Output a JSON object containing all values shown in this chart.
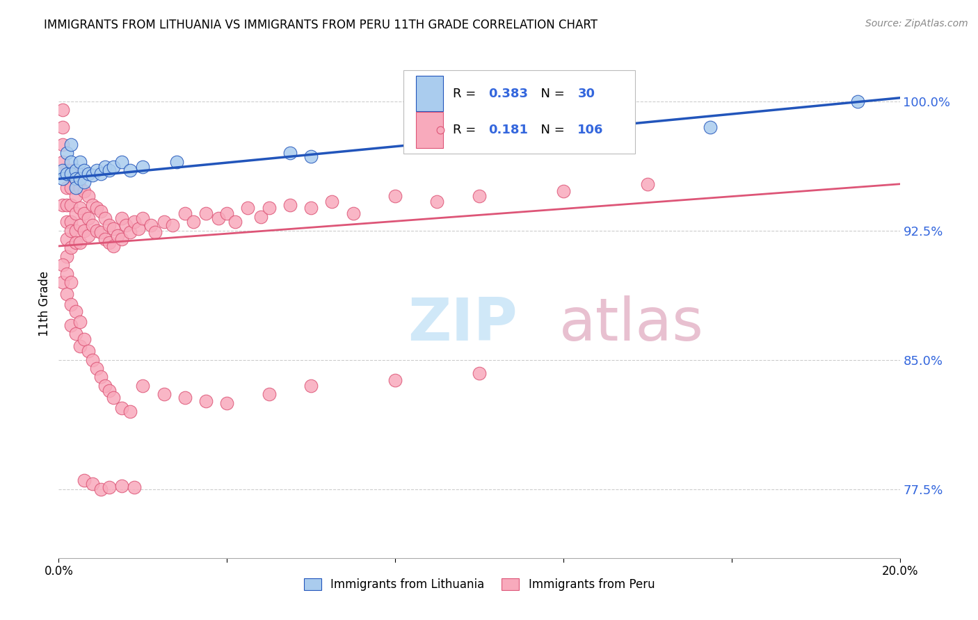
{
  "title": "IMMIGRANTS FROM LITHUANIA VS IMMIGRANTS FROM PERU 11TH GRADE CORRELATION CHART",
  "source": "Source: ZipAtlas.com",
  "ylabel": "11th Grade",
  "xlim": [
    0.0,
    0.2
  ],
  "ylim": [
    0.735,
    1.03
  ],
  "yticks": [
    0.775,
    0.85,
    0.925,
    1.0
  ],
  "ytick_labels": [
    "77.5%",
    "85.0%",
    "92.5%",
    "100.0%"
  ],
  "ytick_color": "#3366dd",
  "legend_R_lith": "0.383",
  "legend_N_lith": "30",
  "legend_R_peru": "0.181",
  "legend_N_peru": "106",
  "color_lith": "#aaccee",
  "color_peru": "#f8aabc",
  "color_line_lith": "#2255bb",
  "color_line_peru": "#dd5577",
  "watermark_zip": "ZIP",
  "watermark_atlas": "atlas",
  "watermark_color_zip": "#d0e8f8",
  "watermark_color_atlas": "#e8c0d0",
  "background_color": "#ffffff",
  "lith_line_x0": 0.0,
  "lith_line_y0": 0.955,
  "lith_line_x1": 0.2,
  "lith_line_y1": 1.002,
  "peru_line_x0": 0.0,
  "peru_line_y0": 0.916,
  "peru_line_x1": 0.2,
  "peru_line_y1": 0.952,
  "lith_x": [
    0.001,
    0.001,
    0.002,
    0.002,
    0.003,
    0.003,
    0.003,
    0.004,
    0.004,
    0.004,
    0.005,
    0.005,
    0.006,
    0.006,
    0.007,
    0.008,
    0.009,
    0.01,
    0.011,
    0.012,
    0.013,
    0.015,
    0.017,
    0.02,
    0.028,
    0.055,
    0.06,
    0.12,
    0.155,
    0.19
  ],
  "lith_y": [
    0.96,
    0.955,
    0.97,
    0.958,
    0.975,
    0.965,
    0.958,
    0.96,
    0.955,
    0.95,
    0.965,
    0.955,
    0.96,
    0.953,
    0.958,
    0.957,
    0.96,
    0.958,
    0.962,
    0.96,
    0.962,
    0.965,
    0.96,
    0.962,
    0.965,
    0.97,
    0.968,
    0.978,
    0.985,
    1.0
  ],
  "peru_x": [
    0.001,
    0.001,
    0.001,
    0.001,
    0.001,
    0.002,
    0.002,
    0.002,
    0.002,
    0.002,
    0.002,
    0.003,
    0.003,
    0.003,
    0.003,
    0.003,
    0.003,
    0.004,
    0.004,
    0.004,
    0.004,
    0.004,
    0.005,
    0.005,
    0.005,
    0.005,
    0.006,
    0.006,
    0.006,
    0.007,
    0.007,
    0.007,
    0.008,
    0.008,
    0.009,
    0.009,
    0.01,
    0.01,
    0.011,
    0.011,
    0.012,
    0.012,
    0.013,
    0.013,
    0.014,
    0.015,
    0.015,
    0.016,
    0.017,
    0.018,
    0.019,
    0.02,
    0.022,
    0.023,
    0.025,
    0.027,
    0.03,
    0.032,
    0.035,
    0.038,
    0.04,
    0.042,
    0.045,
    0.048,
    0.05,
    0.055,
    0.06,
    0.065,
    0.07,
    0.08,
    0.09,
    0.1,
    0.12,
    0.14,
    0.001,
    0.001,
    0.002,
    0.002,
    0.003,
    0.003,
    0.003,
    0.004,
    0.004,
    0.005,
    0.005,
    0.006,
    0.007,
    0.008,
    0.009,
    0.01,
    0.011,
    0.012,
    0.013,
    0.015,
    0.017,
    0.02,
    0.025,
    0.03,
    0.035,
    0.04,
    0.05,
    0.06,
    0.08,
    0.1,
    0.006,
    0.008,
    0.01,
    0.012,
    0.015,
    0.018
  ],
  "peru_y": [
    0.995,
    0.985,
    0.975,
    0.965,
    0.94,
    0.96,
    0.95,
    0.94,
    0.93,
    0.92,
    0.91,
    0.96,
    0.95,
    0.94,
    0.93,
    0.925,
    0.915,
    0.955,
    0.945,
    0.935,
    0.925,
    0.918,
    0.95,
    0.938,
    0.928,
    0.918,
    0.948,
    0.935,
    0.925,
    0.945,
    0.932,
    0.922,
    0.94,
    0.928,
    0.938,
    0.925,
    0.936,
    0.924,
    0.932,
    0.92,
    0.928,
    0.918,
    0.926,
    0.916,
    0.922,
    0.932,
    0.92,
    0.928,
    0.924,
    0.93,
    0.926,
    0.932,
    0.928,
    0.924,
    0.93,
    0.928,
    0.935,
    0.93,
    0.935,
    0.932,
    0.935,
    0.93,
    0.938,
    0.933,
    0.938,
    0.94,
    0.938,
    0.942,
    0.935,
    0.945,
    0.942,
    0.945,
    0.948,
    0.952,
    0.905,
    0.895,
    0.9,
    0.888,
    0.895,
    0.882,
    0.87,
    0.878,
    0.865,
    0.872,
    0.858,
    0.862,
    0.855,
    0.85,
    0.845,
    0.84,
    0.835,
    0.832,
    0.828,
    0.822,
    0.82,
    0.835,
    0.83,
    0.828,
    0.826,
    0.825,
    0.83,
    0.835,
    0.838,
    0.842,
    0.78,
    0.778,
    0.775,
    0.776,
    0.777,
    0.776
  ]
}
